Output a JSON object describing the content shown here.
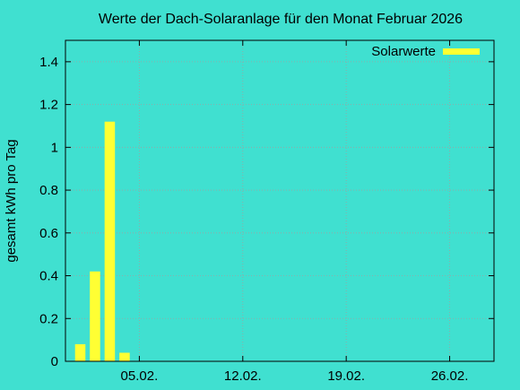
{
  "colors": {
    "background": "#40e0d0",
    "bar": "#ffff33",
    "axis": "#000000",
    "grid": "#a0a0a0"
  },
  "chart_data": {
    "type": "bar",
    "title": "Werte der Dach-Solaranlage für den Monat Februar 2026",
    "xlabel": "",
    "ylabel": "gesamt kWh pro Tag",
    "ylim": [
      0,
      1.5
    ],
    "yticks": [
      0,
      0.2,
      0.4,
      0.6,
      0.8,
      1,
      1.2,
      1.4
    ],
    "ytick_labels": [
      "0",
      "0.2",
      "0.4",
      "0.6",
      "0.8",
      "1",
      "1.2",
      "1.4"
    ],
    "x_range_days": [
      0,
      29
    ],
    "xticks": [
      5,
      12,
      19,
      26
    ],
    "xtick_labels": [
      "05.02.",
      "12.02.",
      "19.02.",
      "26.02."
    ],
    "grid": true,
    "legend_position": "top-right",
    "series": [
      {
        "name": "Solarwerte",
        "x": [
          1,
          2,
          3,
          4
        ],
        "values": [
          0.08,
          0.42,
          1.12,
          0.04
        ]
      }
    ]
  }
}
